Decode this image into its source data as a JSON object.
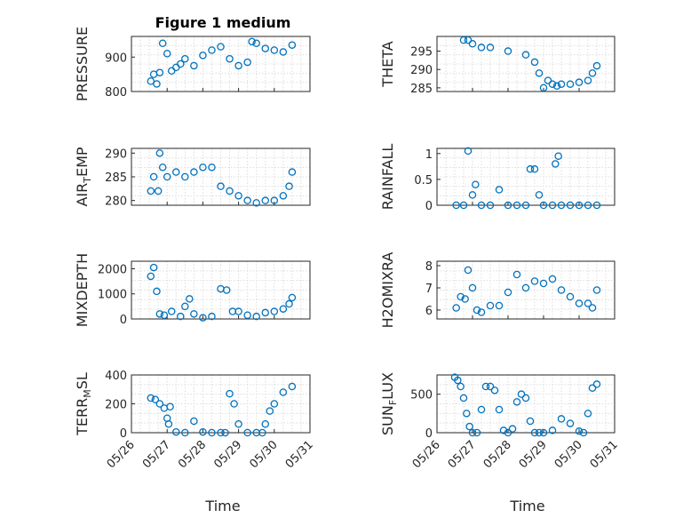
{
  "figure": {
    "title": "Figure 1 medium",
    "marker_color": "#0072bd"
  },
  "chart_data": {
    "type": "scatter",
    "x_type": "date",
    "x_ticks": [
      "05/26",
      "05/27",
      "05/28",
      "05/29",
      "05/30",
      "05/31"
    ],
    "xlabel": "Time",
    "grid": true,
    "subplots": [
      {
        "id": "pressure",
        "ylabel": "PRESSURE",
        "ylim": [
          800,
          960
        ],
        "yticks": [
          800,
          900
        ],
        "series": [
          {
            "x": [
              "05/26 13:00",
              "05/26 15:00",
              "05/26 17:00",
              "05/26 19:00",
              "05/26 21:00",
              "05/27 00:00",
              "05/27 03:00",
              "05/27 06:00",
              "05/27 09:00",
              "05/27 12:00",
              "05/27 18:00",
              "05/28 00:00",
              "05/28 06:00",
              "05/28 12:00",
              "05/28 18:00",
              "05/29 00:00",
              "05/29 06:00",
              "05/29 09:00",
              "05/29 12:00",
              "05/29 18:00",
              "05/30 00:00",
              "05/30 06:00",
              "05/30 12:00"
            ],
            "y": [
              830,
              850,
              822,
              855,
              940,
              910,
              860,
              870,
              880,
              895,
              875,
              905,
              920,
              930,
              895,
              875,
              885,
              945,
              940,
              925,
              920,
              915,
              935
            ]
          }
        ]
      },
      {
        "id": "theta",
        "ylabel": "THETA",
        "ylim": [
          284,
          299
        ],
        "yticks": [
          285,
          290,
          295
        ],
        "series": [
          {
            "x": [
              "05/26 18:00",
              "05/26 21:00",
              "05/27 00:00",
              "05/27 06:00",
              "05/27 12:00",
              "05/28 00:00",
              "05/28 12:00",
              "05/28 18:00",
              "05/28 21:00",
              "05/29 00:00",
              "05/29 03:00",
              "05/29 06:00",
              "05/29 09:00",
              "05/29 12:00",
              "05/29 18:00",
              "05/30 00:00",
              "05/30 06:00",
              "05/30 09:00",
              "05/30 12:00"
            ],
            "y": [
              298,
              298,
              297,
              296,
              296,
              295,
              294,
              292,
              289,
              285,
              287,
              286,
              285.5,
              286,
              286,
              286.5,
              287,
              289,
              291
            ]
          }
        ]
      },
      {
        "id": "air_temp",
        "ylabel": "AIR_TEMP",
        "ylim": [
          279,
          291
        ],
        "yticks": [
          280,
          285,
          290
        ],
        "series": [
          {
            "x": [
              "05/26 13:00",
              "05/26 15:00",
              "05/26 18:00",
              "05/26 19:00",
              "05/26 21:00",
              "05/27 00:00",
              "05/27 06:00",
              "05/27 12:00",
              "05/27 18:00",
              "05/28 00:00",
              "05/28 06:00",
              "05/28 12:00",
              "05/28 18:00",
              "05/29 00:00",
              "05/29 06:00",
              "05/29 12:00",
              "05/29 18:00",
              "05/30 00:00",
              "05/30 06:00",
              "05/30 10:00",
              "05/30 12:00"
            ],
            "y": [
              282,
              285,
              282,
              290,
              287,
              285,
              286,
              285,
              286,
              287,
              287,
              283,
              282,
              281,
              280,
              279.5,
              280,
              280,
              281,
              283,
              286
            ]
          }
        ]
      },
      {
        "id": "rainfall",
        "ylabel": "RAINFALL",
        "ylim": [
          0,
          1.1
        ],
        "yticks": [
          0,
          0.5,
          1
        ],
        "series": [
          {
            "x": [
              "05/26 13:00",
              "05/26 18:00",
              "05/26 21:00",
              "05/27 00:00",
              "05/27 02:00",
              "05/27 06:00",
              "05/27 12:00",
              "05/27 18:00",
              "05/28 00:00",
              "05/28 06:00",
              "05/28 12:00",
              "05/28 15:00",
              "05/28 18:00",
              "05/28 21:00",
              "05/29 00:00",
              "05/29 06:00",
              "05/29 08:00",
              "05/29 10:00",
              "05/29 12:00",
              "05/29 18:00",
              "05/30 00:00",
              "05/30 06:00",
              "05/30 12:00"
            ],
            "y": [
              0,
              0,
              1.05,
              0.2,
              0.4,
              0,
              0,
              0.3,
              0,
              0,
              0,
              0.7,
              0.7,
              0.2,
              0,
              0,
              0.8,
              0.95,
              0,
              0,
              0,
              0,
              0
            ]
          }
        ]
      },
      {
        "id": "mixdepth",
        "ylabel": "MIXDEPTH",
        "ylim": [
          0,
          2300
        ],
        "yticks": [
          0,
          1000,
          2000
        ],
        "series": [
          {
            "x": [
              "05/26 13:00",
              "05/26 15:00",
              "05/26 17:00",
              "05/26 19:00",
              "05/26 22:00",
              "05/27 03:00",
              "05/27 09:00",
              "05/27 12:00",
              "05/27 15:00",
              "05/27 18:00",
              "05/28 00:00",
              "05/28 06:00",
              "05/28 12:00",
              "05/28 16:00",
              "05/28 20:00",
              "05/29 00:00",
              "05/29 06:00",
              "05/29 12:00",
              "05/29 18:00",
              "05/30 00:00",
              "05/30 06:00",
              "05/30 10:00",
              "05/30 12:00"
            ],
            "y": [
              1700,
              2050,
              1100,
              200,
              150,
              300,
              100,
              500,
              800,
              200,
              50,
              100,
              1200,
              1150,
              300,
              300,
              150,
              100,
              250,
              300,
              400,
              600,
              850
            ]
          }
        ]
      },
      {
        "id": "h2omixra",
        "ylabel": "H2OMIXRA",
        "ylim": [
          5.6,
          8.2
        ],
        "yticks": [
          6,
          7,
          8
        ],
        "series": [
          {
            "x": [
              "05/26 13:00",
              "05/26 16:00",
              "05/26 19:00",
              "05/26 21:00",
              "05/27 00:00",
              "05/27 03:00",
              "05/27 06:00",
              "05/27 12:00",
              "05/27 18:00",
              "05/28 00:00",
              "05/28 06:00",
              "05/28 12:00",
              "05/28 18:00",
              "05/29 00:00",
              "05/29 06:00",
              "05/29 12:00",
              "05/29 18:00",
              "05/30 00:00",
              "05/30 06:00",
              "05/30 09:00",
              "05/30 12:00"
            ],
            "y": [
              6.1,
              6.6,
              6.5,
              7.8,
              7,
              6,
              5.9,
              6.2,
              6.2,
              6.8,
              7.6,
              7,
              7.3,
              7.2,
              7.4,
              6.9,
              6.6,
              6.3,
              6.3,
              6.1,
              6.9
            ]
          }
        ]
      },
      {
        "id": "terr_msl",
        "ylabel": "TERR_MSL",
        "ylim": [
          0,
          400
        ],
        "yticks": [
          0,
          200,
          400
        ],
        "series": [
          {
            "x": [
              "05/26 13:00",
              "05/26 16:00",
              "05/26 19:00",
              "05/26 22:00",
              "05/27 00:00",
              "05/27 01:00",
              "05/27 02:00",
              "05/27 06:00",
              "05/27 12:00",
              "05/27 18:00",
              "05/28 00:00",
              "05/28 06:00",
              "05/28 12:00",
              "05/28 15:00",
              "05/28 18:00",
              "05/28 21:00",
              "05/29 00:00",
              "05/29 06:00",
              "05/29 12:00",
              "05/29 16:00",
              "05/29 18:00",
              "05/29 21:00",
              "05/30 00:00",
              "05/30 06:00",
              "05/30 12:00"
            ],
            "y": [
              240,
              230,
              200,
              170,
              100,
              60,
              180,
              5,
              0,
              80,
              5,
              0,
              0,
              0,
              270,
              200,
              60,
              0,
              0,
              0,
              60,
              150,
              200,
              280,
              320
            ]
          }
        ]
      },
      {
        "id": "sun_flux",
        "ylabel": "SUN_FLUX",
        "ylim": [
          0,
          750
        ],
        "yticks": [
          0,
          500
        ],
        "series": [
          {
            "x": [
              "05/26 12:00",
              "05/26 14:00",
              "05/26 16:00",
              "05/26 18:00",
              "05/26 20:00",
              "05/26 22:00",
              "05/27 00:00",
              "05/27 03:00",
              "05/27 06:00",
              "05/27 09:00",
              "05/27 12:00",
              "05/27 15:00",
              "05/27 18:00",
              "05/27 21:00",
              "05/28 00:00",
              "05/28 03:00",
              "05/28 06:00",
              "05/28 09:00",
              "05/28 12:00",
              "05/28 15:00",
              "05/28 18:00",
              "05/28 21:00",
              "05/29 00:00",
              "05/29 06:00",
              "05/29 12:00",
              "05/29 18:00",
              "05/30 00:00",
              "05/30 03:00",
              "05/30 06:00",
              "05/30 09:00",
              "05/30 12:00"
            ],
            "y": [
              720,
              680,
              600,
              450,
              250,
              80,
              0,
              0,
              300,
              600,
              600,
              550,
              300,
              30,
              0,
              50,
              400,
              500,
              450,
              150,
              0,
              0,
              0,
              30,
              180,
              120,
              20,
              0,
              250,
              580,
              630
            ]
          }
        ]
      }
    ]
  }
}
